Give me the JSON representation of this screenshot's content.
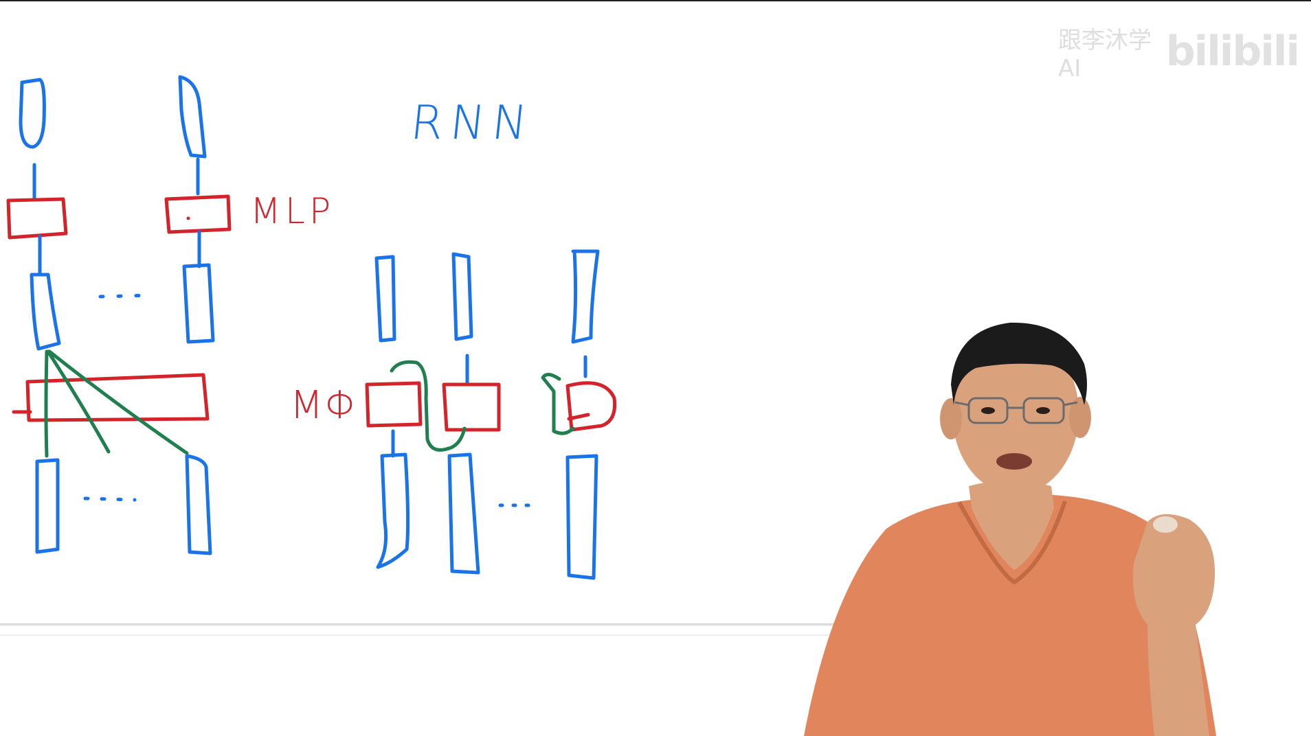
{
  "diagram": {
    "labels": {
      "rnn": "RNN",
      "mlp": "MLP",
      "m_phi": "MΦ"
    },
    "ellipsis": "· · ·",
    "colors": {
      "vector_ink": "#1a73e8",
      "mlp_ink": "#d3232b",
      "connection_ink": "#1f7f4f"
    }
  },
  "watermark": {
    "channel_text": "跟李沐学AI",
    "logo_text": "bilibili"
  },
  "presenter": {
    "shirt_color": "#e0855c",
    "skin_color": "#d9a27d",
    "hair_color": "#1c1b1b"
  }
}
